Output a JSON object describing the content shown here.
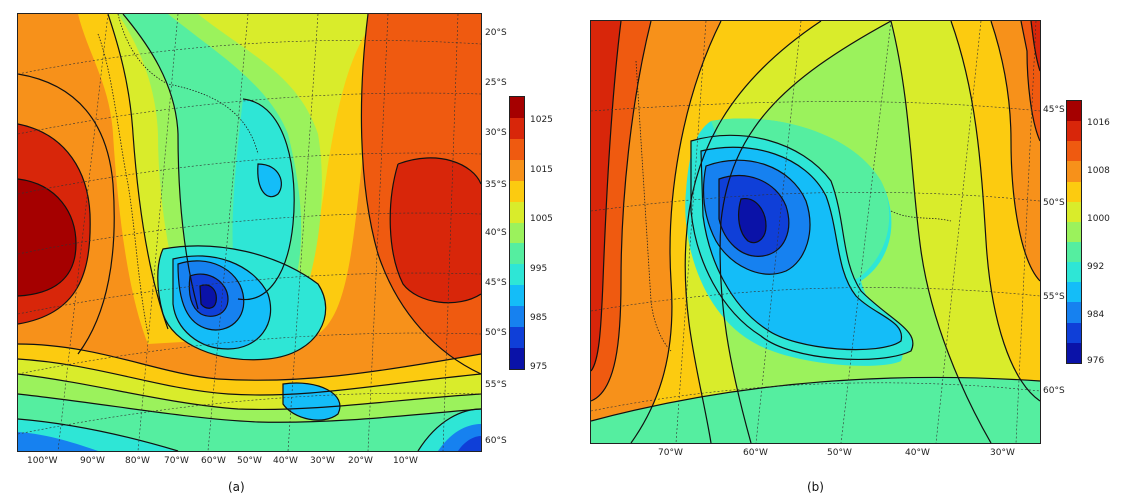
{
  "panel_a": {
    "caption": "(a)",
    "lon_labels": [
      "100°W",
      "90°W",
      "80°W",
      "70°W",
      "60°W",
      "50°W",
      "40°W",
      "30°W",
      "20°W",
      "10°W"
    ],
    "lat_labels": [
      "20°S",
      "25°S",
      "30°S",
      "35°S",
      "40°S",
      "45°S",
      "50°S",
      "55°S",
      "60°S"
    ],
    "colorbar": {
      "ticks": [
        "1025",
        "1015",
        "1005",
        "995",
        "985",
        "975"
      ],
      "colors": [
        "#a50000",
        "#d8260a",
        "#ef5a10",
        "#f7911a",
        "#fccb10",
        "#d9ec2b",
        "#9bf25c",
        "#55eea0",
        "#2ee6d6",
        "#14bdf8",
        "#1681f0",
        "#0f3fd8",
        "#0a12a8"
      ]
    }
  },
  "panel_b": {
    "caption": "(b)",
    "lon_labels": [
      "70°W",
      "60°W",
      "50°W",
      "40°W",
      "30°W"
    ],
    "lat_labels": [
      "45°S",
      "50°S",
      "55°S",
      "60°S"
    ],
    "colorbar": {
      "ticks": [
        "1016",
        "1008",
        "1000",
        "992",
        "984",
        "976"
      ],
      "colors": [
        "#a50000",
        "#d8260a",
        "#ef5a10",
        "#f7911a",
        "#fccb10",
        "#d9ec2b",
        "#9bf25c",
        "#55eea0",
        "#2ee6d6",
        "#14bdf8",
        "#1681f0",
        "#0f3fd8",
        "#0a12a8"
      ]
    }
  }
}
